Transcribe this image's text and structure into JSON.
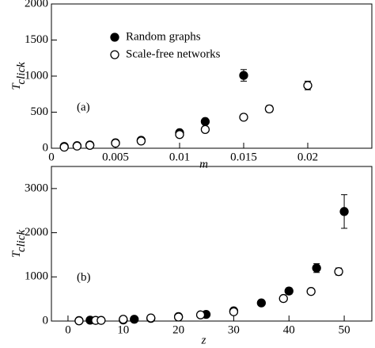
{
  "chart_data": [
    {
      "type": "scatter",
      "panel_label": "(a)",
      "xlabel": "m",
      "ylabel": "T",
      "ylabel_sub": "click",
      "xlim": [
        0,
        0.025
      ],
      "xticks": [
        0,
        0.005,
        0.01,
        0.015,
        0.02
      ],
      "ylim": [
        0,
        2000
      ],
      "yticks": [
        0,
        500,
        1000,
        1500,
        2000
      ],
      "legend": "upper-left",
      "series": [
        {
          "name": "Random graphs",
          "marker": "filled",
          "color": "#000000",
          "x": [
            0.001,
            0.002,
            0.003,
            0.005,
            0.007,
            0.01,
            0.012,
            0.015
          ],
          "values": [
            25,
            35,
            45,
            75,
            110,
            215,
            370,
            1010
          ],
          "errors": [
            10,
            10,
            12,
            15,
            20,
            30,
            35,
            80
          ]
        },
        {
          "name": "Scale-free networks",
          "marker": "open",
          "color": "#000000",
          "x": [
            0.001,
            0.002,
            0.003,
            0.005,
            0.007,
            0.01,
            0.012,
            0.015,
            0.017,
            0.02
          ],
          "values": [
            15,
            30,
            40,
            70,
            100,
            190,
            260,
            430,
            545,
            870
          ],
          "errors": [
            8,
            10,
            10,
            15,
            18,
            25,
            30,
            40,
            45,
            60
          ]
        }
      ]
    },
    {
      "type": "scatter",
      "panel_label": "(b)",
      "xlabel": "z",
      "ylabel": "T",
      "ylabel_sub": "click",
      "xlim": [
        -3,
        55
      ],
      "xticks": [
        0,
        10,
        20,
        30,
        40,
        50
      ],
      "ylim": [
        0,
        3500
      ],
      "yticks": [
        0,
        1000,
        2000,
        3000
      ],
      "series": [
        {
          "marker": "filled",
          "color": "#000000",
          "x": [
            2,
            4,
            10,
            12,
            15,
            20,
            25,
            30,
            35,
            40,
            45,
            50
          ],
          "values": [
            10,
            20,
            25,
            40,
            60,
            100,
            150,
            230,
            410,
            680,
            1200,
            2480
          ],
          "errors": [
            5,
            5,
            8,
            10,
            12,
            20,
            25,
            40,
            50,
            70,
            100,
            380
          ]
        },
        {
          "marker": "open",
          "color": "#000000",
          "x": [
            2,
            5,
            6,
            10,
            15,
            20,
            24,
            30,
            39,
            44,
            49
          ],
          "values": [
            5,
            15,
            15,
            40,
            70,
            90,
            140,
            210,
            510,
            670,
            1120
          ],
          "errors": [
            3,
            5,
            5,
            8,
            10,
            15,
            20,
            30,
            50,
            50,
            80
          ]
        }
      ]
    }
  ]
}
